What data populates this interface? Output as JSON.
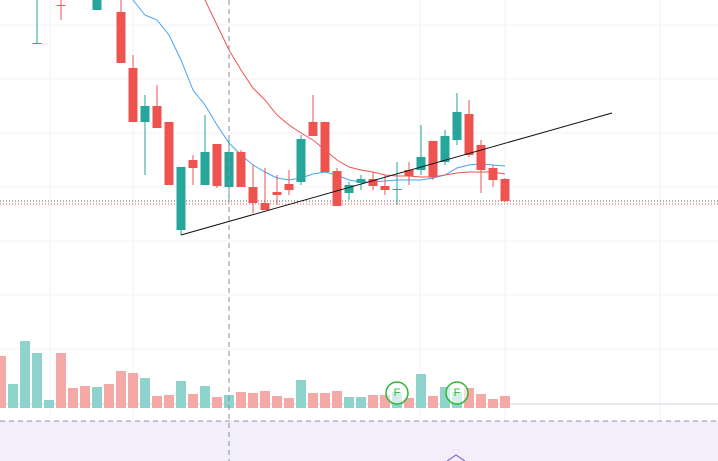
{
  "chart_data": {
    "type": "candlestick",
    "ylim": [
      0,
      461
    ],
    "up_color": "#26a69a",
    "down_color": "#ef5350",
    "open": [
      null,
      null,
      null,
      417,
      null,
      456,
      null,
      null,
      451,
      null,
      449,
      393,
      339,
      355,
      339,
      231,
      301,
      276,
      317,
      274,
      309,
      274,
      258,
      269,
      277,
      279,
      339,
      339,
      290,
      268,
      278,
      282,
      275,
      271,
      291,
      291,
      320,
      299,
      321,
      347,
      316,
      293,
      282
    ],
    "high": [
      null,
      null,
      null,
      461,
      null,
      461,
      null,
      null,
      461,
      null,
      461,
      406,
      366,
      376,
      339,
      294,
      306,
      346,
      317,
      321,
      311,
      296,
      293,
      286,
      291,
      326,
      366,
      339,
      293,
      279,
      286,
      289,
      286,
      299,
      299,
      336,
      320,
      331,
      368,
      361,
      321,
      296,
      283
    ],
    "low": [
      null,
      null,
      null,
      417,
      null,
      441,
      null,
      null,
      451,
      null,
      398,
      339,
      286,
      333,
      276,
      226,
      276,
      276,
      273,
      261,
      274,
      248,
      251,
      256,
      266,
      276,
      325,
      289,
      255,
      261,
      271,
      271,
      266,
      256,
      276,
      286,
      281,
      296,
      316,
      304,
      268,
      274,
      259
    ],
    "close": [
      null,
      null,
      null,
      418,
      null,
      455,
      null,
      null,
      461,
      null,
      398,
      339,
      355,
      333,
      276,
      294,
      293,
      309,
      275,
      309,
      274,
      258,
      251,
      266,
      271,
      322,
      325,
      289,
      255,
      276,
      282,
      275,
      271,
      272,
      285,
      304,
      284,
      325,
      349,
      306,
      291,
      281,
      260
    ],
    "series": [
      {
        "color": "#42a5f5",
        "values": [
          null,
          null,
          null,
          null,
          null,
          null,
          null,
          null,
          null,
          null,
          null,
          461,
          446,
          441,
          426,
          401,
          371,
          356,
          336,
          318,
          306,
          296,
          289,
          283,
          281,
          283,
          287,
          289,
          286,
          281,
          279,
          279,
          280,
          281,
          281,
          281,
          283,
          286,
          293,
          296,
          297,
          296,
          295
        ]
      },
      {
        "color": "#ef5350",
        "values": [
          null,
          null,
          null,
          null,
          null,
          null,
          null,
          null,
          null,
          null,
          null,
          null,
          null,
          null,
          null,
          null,
          null,
          461,
          436,
          411,
          391,
          373,
          361,
          346,
          336,
          328,
          321,
          311,
          301,
          294,
          291,
          289,
          286,
          285,
          285,
          284,
          284,
          286,
          288,
          289,
          289,
          289,
          287
        ]
      }
    ],
    "volume": {
      "ylim": [
        0,
        100
      ],
      "values": [
        52,
        24,
        67,
        55,
        8,
        55,
        20,
        22,
        21,
        24,
        37,
        35,
        30,
        12,
        13,
        27,
        14,
        22,
        11,
        13,
        16,
        15,
        17,
        12,
        10,
        28,
        15,
        15,
        17,
        11,
        11,
        13,
        13,
        16,
        10,
        34,
        12,
        21,
        16,
        20,
        14,
        9,
        12
      ],
      "colors": [
        "#f4a9a7",
        "#8fd4cc",
        "#8fd4cc",
        "#8fd4cc",
        "#8fd4cc",
        "#f4a9a7",
        "#f4a9a7",
        "#f4a9a7",
        "#8fd4cc",
        "#f4a9a7",
        "#f4a9a7",
        "#f4a9a7",
        "#8fd4cc",
        "#f4a9a7",
        "#f4a9a7",
        "#8fd4cc",
        "#f4a9a7",
        "#8fd4cc",
        "#f4a9a7",
        "#8fd4cc",
        "#f4a9a7",
        "#f4a9a7",
        "#f4a9a7",
        "#f4a9a7",
        "#f4a9a7",
        "#8fd4cc",
        "#f4a9a7",
        "#f4a9a7",
        "#f4a9a7",
        "#8fd4cc",
        "#8fd4cc",
        "#f4a9a7",
        "#f4a9a7",
        "#8fd4cc",
        "#f4a9a7",
        "#8fd4cc",
        "#f4a9a7",
        "#8fd4cc",
        "#8fd4cc",
        "#f4a9a7",
        "#f4a9a7",
        "#f4a9a7",
        "#f4a9a7"
      ]
    },
    "markers": [
      {
        "index": 33,
        "label": "F",
        "color": "#2db82d"
      },
      {
        "index": 38,
        "label": "F",
        "color": "#2db82d"
      }
    ]
  }
}
